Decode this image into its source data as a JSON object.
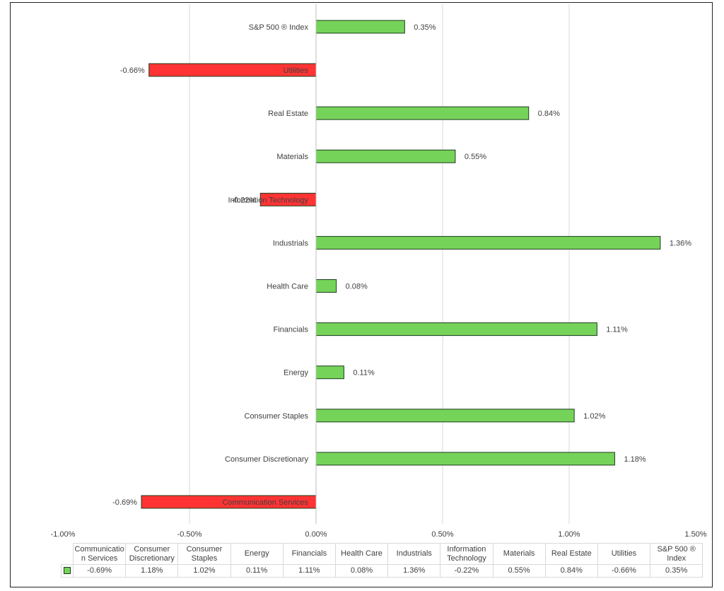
{
  "chart_data": {
    "type": "bar",
    "orientation": "horizontal",
    "categories": [
      "Communication Services",
      "Consumer Discretionary",
      "Consumer Staples",
      "Energy",
      "Financials",
      "Health Care",
      "Industrials",
      "Information Technology",
      "Materials",
      "Real Estate",
      "Utilities",
      "S&P 500 ® Index"
    ],
    "values": [
      -0.69,
      1.18,
      1.02,
      0.11,
      1.11,
      0.08,
      1.36,
      -0.22,
      0.55,
      0.84,
      -0.66,
      0.35
    ],
    "value_labels": [
      "-0.69%",
      "1.18%",
      "1.02%",
      "0.11%",
      "1.11%",
      "0.08%",
      "1.36%",
      "-0.22%",
      "0.55%",
      "0.84%",
      "-0.66%",
      "0.35%"
    ],
    "xlim": [
      -1.0,
      1.5
    ],
    "xticks": [
      -1.0,
      -0.5,
      0.0,
      0.5,
      1.0,
      1.5
    ],
    "xtick_labels": [
      "-1.00%",
      "-0.50%",
      "0.00%",
      "0.50%",
      "1.00%",
      "1.50%"
    ],
    "grid": "vertical",
    "positive_color": "#76d35a",
    "negative_color": "#ff3333",
    "bar_outline_color": "#1b3d1b",
    "data_table": {
      "headers": [
        "Communicatio n Services",
        "Consumer Discretionary",
        "Consumer Staples",
        "Energy",
        "Financials",
        "Health Care",
        "Industrials",
        "Information Technology",
        "Materials",
        "Real Estate",
        "Utilities",
        "S&P 500 ® Index"
      ],
      "values": [
        "-0.69%",
        "1.18%",
        "1.02%",
        "0.11%",
        "1.11%",
        "0.08%",
        "1.36%",
        "-0.22%",
        "0.55%",
        "0.84%",
        "-0.66%",
        "0.35%"
      ]
    }
  }
}
